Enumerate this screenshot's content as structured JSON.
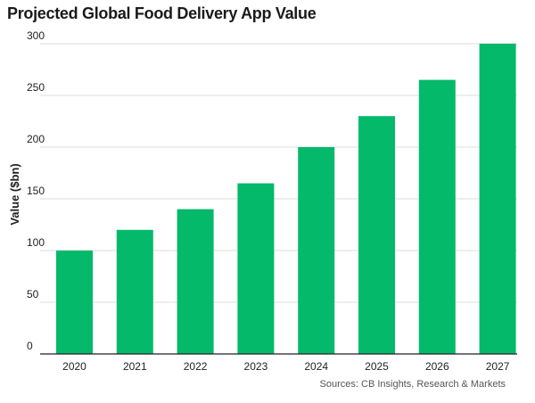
{
  "chart_data": {
    "type": "bar",
    "title": "Projected Global Food Delivery App Value",
    "ylabel": "Value ($bn)",
    "xlabel": "",
    "categories": [
      "2020",
      "2021",
      "2022",
      "2023",
      "2024",
      "2025",
      "2026",
      "2027"
    ],
    "values": [
      100,
      120,
      140,
      165,
      200,
      230,
      265,
      300
    ],
    "ylim": [
      0,
      300
    ],
    "yticks": [
      0,
      50,
      100,
      150,
      200,
      250,
      300
    ],
    "grid": "horizontal",
    "legend": "none",
    "bar_color": "#05b96b",
    "source": "Sources: CB Insights, Research & Markets"
  }
}
